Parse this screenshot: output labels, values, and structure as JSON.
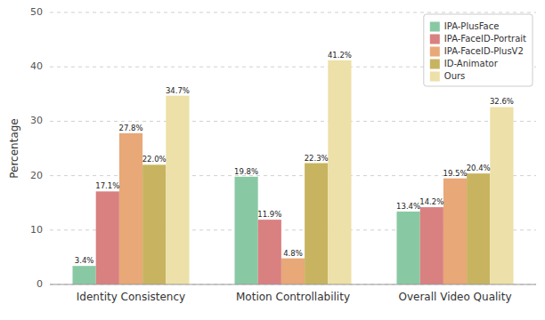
{
  "chart_data": {
    "type": "bar",
    "categories": [
      "Identity Consistency",
      "Motion Controllability",
      "Overall Video Quality"
    ],
    "series": [
      {
        "name": "IPA-PlusFace",
        "color": "#88c9a4",
        "values": [
          3.4,
          19.8,
          13.4
        ],
        "value_labels": [
          "3.4%",
          "19.8%",
          "13.4%"
        ]
      },
      {
        "name": "IPA-FaceID-Portrait",
        "color": "#d98080",
        "values": [
          17.1,
          11.9,
          14.2
        ],
        "value_labels": [
          "17.1%",
          "11.9%",
          "14.2%"
        ]
      },
      {
        "name": "IPA-FaceID-PlusV2",
        "color": "#e8a878",
        "values": [
          27.8,
          4.8,
          19.5
        ],
        "value_labels": [
          "27.8%",
          "4.8%",
          "19.5%"
        ]
      },
      {
        "name": "ID-Animator",
        "color": "#c8b460",
        "values": [
          22.0,
          22.3,
          20.4
        ],
        "value_labels": [
          "22.0%",
          "22.3%",
          "20.4%"
        ]
      },
      {
        "name": "Ours",
        "color": "#ede0a8",
        "values": [
          34.7,
          41.2,
          32.6
        ],
        "value_labels": [
          "34.7%",
          "41.2%",
          "32.6%"
        ]
      }
    ],
    "ylabel": "Percentage",
    "ylim": [
      0,
      50
    ],
    "yticks": [
      0,
      10,
      20,
      30,
      40,
      50
    ],
    "grid": true,
    "legend": "upper right",
    "data_labels": true
  }
}
